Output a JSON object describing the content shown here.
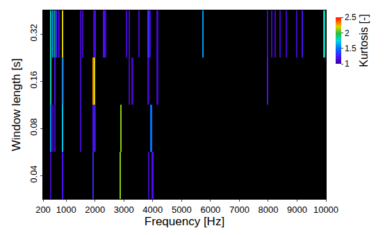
{
  "chart_data": {
    "type": "heatmap",
    "x_label": "Frequency [Hz]",
    "y_label": "Window length [s]",
    "xlim": [
      200,
      10000
    ],
    "xticks": [
      200,
      1000,
      2000,
      3000,
      4000,
      5000,
      6000,
      7000,
      8000,
      9000,
      10000
    ],
    "grid": false,
    "rows": [
      {
        "window": 0.04,
        "x": [
          470,
          880,
          1940,
          2880,
          3870,
          4000
        ],
        "values": [
          1.1,
          1.2,
          1.3,
          2.1,
          1.1,
          1.2
        ]
      },
      {
        "window": 0.08,
        "x": [
          470,
          540,
          610,
          880,
          1500,
          1940,
          1990,
          2010,
          2900,
          3950
        ],
        "values": [
          1.6,
          1.1,
          1.1,
          1.7,
          1.1,
          1.2,
          1.3,
          1.1,
          2.1,
          1.5
        ]
      },
      {
        "window": 0.16,
        "x": [
          470,
          610,
          880,
          900,
          1500,
          1940,
          1990,
          3190,
          3300,
          3850,
          4170,
          7990
        ],
        "values": [
          1.8,
          1.2,
          1.8,
          1.3,
          1.1,
          2.3,
          2.2,
          1.1,
          1.1,
          1.1,
          1.1,
          1.2
        ]
      },
      {
        "window": 0.32,
        "x": [
          470,
          540,
          610,
          650,
          750,
          880,
          1500,
          1580,
          1960,
          2010,
          2310,
          2380,
          3090,
          3190,
          3530,
          3850,
          3920,
          4170,
          5740,
          7990,
          8130,
          8250,
          8410,
          8640,
          9000,
          9190,
          9950
        ],
        "values": [
          1.8,
          1.6,
          1.9,
          1.3,
          1.1,
          2.2,
          1.1,
          1.1,
          1.1,
          1.2,
          1.2,
          1.1,
          1.1,
          1.1,
          1.1,
          1.3,
          1.1,
          1.1,
          1.6,
          1.1,
          1.1,
          1.1,
          1.1,
          1.1,
          1.1,
          1.2,
          1.8
        ]
      }
    ],
    "colorbar": {
      "title": "Kurtosis [-]",
      "range": [
        1,
        2.5
      ],
      "ticks": [
        1,
        1.5,
        2,
        2.5
      ]
    }
  }
}
